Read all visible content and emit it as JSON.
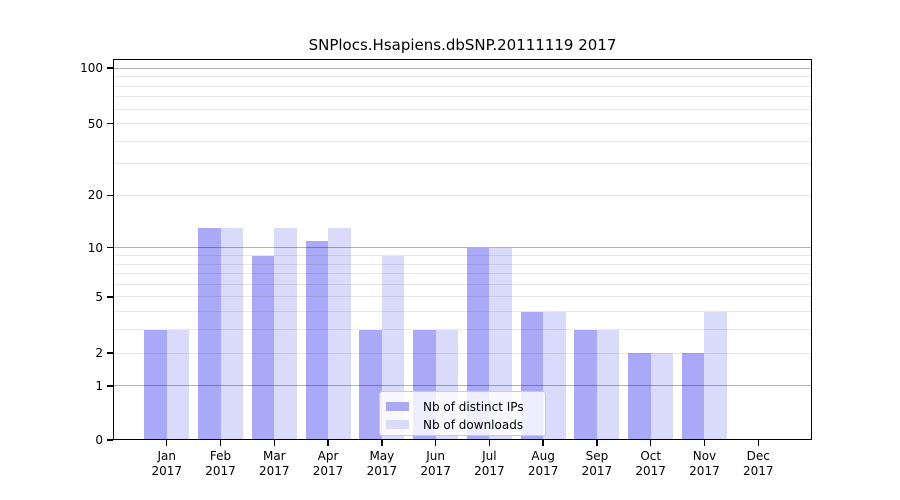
{
  "chart_data": {
    "type": "bar",
    "title": "SNPlocs.Hsapiens.dbSNP.20111119 2017",
    "categories": [
      "Jan",
      "Feb",
      "Mar",
      "Apr",
      "May",
      "Jun",
      "Jul",
      "Aug",
      "Sep",
      "Oct",
      "Nov",
      "Dec"
    ],
    "year_label": "2017",
    "series": [
      {
        "name": "Nb of distinct IPs",
        "color": "#a9a9f7",
        "values": [
          3,
          13,
          9,
          11,
          3,
          3,
          10,
          4,
          3,
          2,
          2,
          0
        ]
      },
      {
        "name": "Nb of downloads",
        "color": "#dadafb",
        "values": [
          3,
          13,
          13,
          13,
          9,
          3,
          10,
          4,
          3,
          2,
          4,
          0
        ]
      }
    ],
    "xlabel": "",
    "ylabel": "",
    "yscale": "log1p",
    "ylim": [
      0,
      100
    ],
    "yticks": [
      100,
      50,
      20,
      10,
      5,
      2,
      1,
      0
    ],
    "grid_major_at": [
      1,
      10,
      100
    ],
    "grid_minor_at": [
      2,
      3,
      4,
      5,
      6,
      7,
      8,
      9,
      20,
      30,
      40,
      50,
      60,
      70,
      80,
      90
    ],
    "legend_position": "lower-center-inside",
    "grid": "on"
  },
  "colors": {
    "axis": "#000000",
    "background": "#ffffff",
    "legend_border": "#cccccc"
  }
}
